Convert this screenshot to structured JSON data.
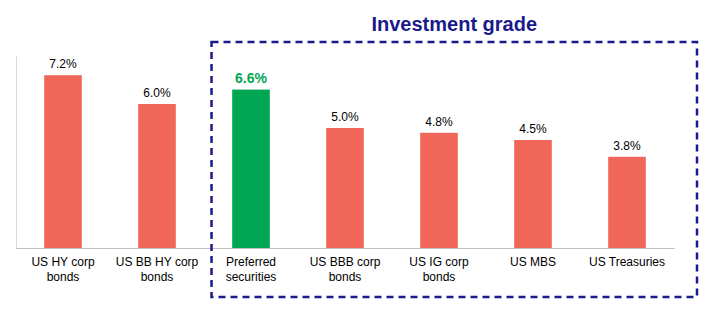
{
  "chart_data": {
    "type": "bar",
    "categories": [
      "US HY corp bonds",
      "US BB HY corp bonds",
      "Preferred securities",
      "US BBB corp bonds",
      "US IG corp bonds",
      "US MBS",
      "US Treasuries"
    ],
    "values": [
      7.2,
      6.0,
      6.6,
      5.0,
      4.8,
      4.5,
      3.8
    ],
    "value_labels": [
      "7.2%",
      "6.0%",
      "6.6%",
      "5.0%",
      "4.8%",
      "4.5%",
      "3.8%"
    ],
    "colors": [
      "#f0675a",
      "#f0675a",
      "#00a651",
      "#f0675a",
      "#f0675a",
      "#f0675a",
      "#f0675a"
    ],
    "data_labels": true,
    "ylim": [
      0,
      8
    ],
    "yticks": [],
    "tick_labels": "x",
    "grid": false,
    "annotations": [
      {
        "text": "Investment grade",
        "from": "Preferred securities",
        "to": "US Treasuries"
      }
    ]
  }
}
